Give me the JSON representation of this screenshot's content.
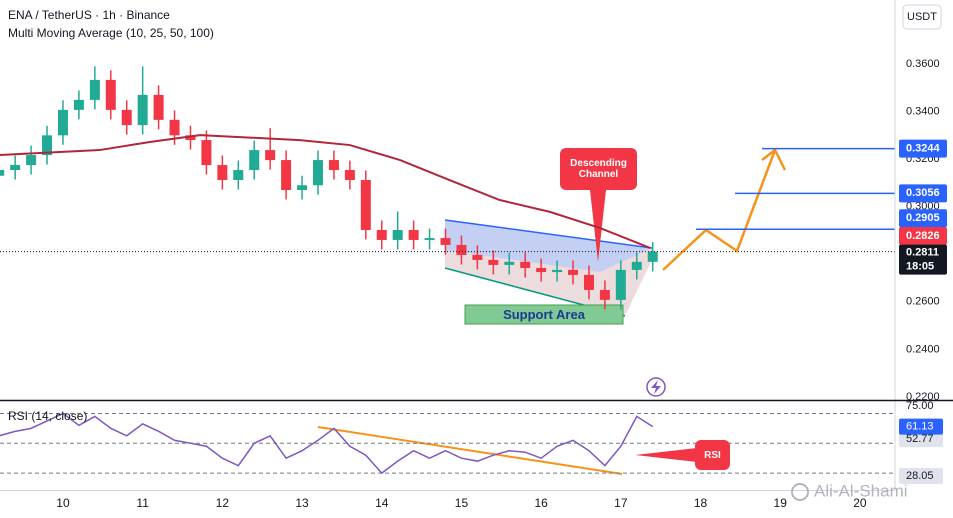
{
  "watermark": "Ali-Al-Shami",
  "chart_data": [
    {
      "type": "candlestick",
      "title": "ENA / TetherUS · 1h · Binance",
      "subtitle": "Multi Moving Average (10, 25, 50, 100)",
      "currency": "USDT",
      "x": [
        9.2,
        9.4,
        9.6,
        9.8,
        10.0,
        10.2,
        10.4,
        10.6,
        10.8,
        11.0,
        11.2,
        11.4,
        11.6,
        11.8,
        12.0,
        12.2,
        12.4,
        12.6,
        12.8,
        13.0,
        13.2,
        13.4,
        13.6,
        13.8,
        14.0,
        14.2,
        14.4,
        14.6,
        14.8,
        15.0,
        15.2,
        15.4,
        15.6,
        15.8,
        16.0,
        16.2,
        16.4,
        16.6,
        16.8,
        17.0,
        17.2,
        17.4
      ],
      "open": [
        0.313,
        0.3154,
        0.3175,
        0.3217,
        0.33,
        0.3407,
        0.3449,
        0.3533,
        0.3407,
        0.3343,
        0.347,
        0.3365,
        0.33,
        0.328,
        0.3175,
        0.3112,
        0.3154,
        0.3238,
        0.3196,
        0.307,
        0.309,
        0.3196,
        0.3154,
        0.3112,
        0.2902,
        0.286,
        0.2902,
        0.286,
        0.2868,
        0.2839,
        0.2797,
        0.2776,
        0.2755,
        0.2768,
        0.2742,
        0.2725,
        0.2734,
        0.2713,
        0.265,
        0.2608,
        0.2734,
        0.2768
      ],
      "high": [
        0.3194,
        0.3215,
        0.3257,
        0.334,
        0.3447,
        0.3489,
        0.359,
        0.3573,
        0.3447,
        0.359,
        0.351,
        0.3405,
        0.334,
        0.332,
        0.3215,
        0.3194,
        0.3278,
        0.333,
        0.3236,
        0.313,
        0.3236,
        0.3236,
        0.3194,
        0.3152,
        0.2942,
        0.298,
        0.2942,
        0.2908,
        0.2908,
        0.2879,
        0.2837,
        0.2816,
        0.2808,
        0.2808,
        0.2782,
        0.2774,
        0.2774,
        0.2753,
        0.269,
        0.2774,
        0.2808,
        0.2851
      ],
      "low": [
        0.309,
        0.3114,
        0.3135,
        0.3177,
        0.326,
        0.3367,
        0.3409,
        0.3367,
        0.3303,
        0.3303,
        0.3325,
        0.326,
        0.324,
        0.3135,
        0.3072,
        0.3072,
        0.3114,
        0.3156,
        0.303,
        0.303,
        0.305,
        0.3114,
        0.3072,
        0.2862,
        0.282,
        0.282,
        0.282,
        0.282,
        0.2799,
        0.2757,
        0.2736,
        0.2715,
        0.2715,
        0.2702,
        0.2685,
        0.2685,
        0.2673,
        0.261,
        0.2568,
        0.2568,
        0.2694,
        0.2728
      ],
      "close": [
        0.3154,
        0.3175,
        0.3217,
        0.33,
        0.3407,
        0.3449,
        0.3533,
        0.3407,
        0.3343,
        0.347,
        0.3365,
        0.33,
        0.328,
        0.3175,
        0.3112,
        0.3154,
        0.3238,
        0.3196,
        0.307,
        0.309,
        0.3196,
        0.3154,
        0.3112,
        0.2902,
        0.286,
        0.2902,
        0.286,
        0.2868,
        0.2839,
        0.2797,
        0.2776,
        0.2755,
        0.2768,
        0.2742,
        0.2725,
        0.2734,
        0.2713,
        0.265,
        0.2608,
        0.2734,
        0.2768,
        0.2811
      ],
      "up_color": "#22ab94",
      "down_color": "#f23645",
      "ma": {
        "color": "#b2263a",
        "x": [
          9.21,
          10.46,
          11.09,
          11.72,
          12.97,
          13.6,
          14.23,
          14.85,
          15.48,
          16.11,
          16.74,
          17.37
        ],
        "values": [
          0.3217,
          0.3238,
          0.3272,
          0.3301,
          0.328,
          0.3259,
          0.3196,
          0.3112,
          0.3028,
          0.2978,
          0.291,
          0.2826
        ]
      },
      "xlim": [
        9.21,
        20.44
      ],
      "xticks": [
        10,
        11,
        12,
        13,
        14,
        15,
        16,
        17,
        18,
        19,
        20
      ],
      "ylim": [
        0.2187,
        0.3869
      ],
      "yticks": [
        {
          "value": 0.22,
          "label": "0.2200"
        },
        {
          "value": 0.24,
          "label": "0.2400"
        },
        {
          "value": 0.26,
          "label": "0.2600"
        },
        {
          "value": 0.3,
          "label": "0.3000"
        },
        {
          "value": 0.32,
          "label": "0.3200"
        },
        {
          "value": 0.34,
          "label": "0.3400"
        },
        {
          "value": 0.36,
          "label": "0.3600"
        }
      ],
      "levels": [
        {
          "value": 0.3244,
          "color": "#2962ff"
        },
        {
          "value": 0.3056,
          "color": "#2962ff"
        },
        {
          "value": 0.2905,
          "color": "#2962ff"
        }
      ],
      "last_time": "18:05",
      "annotations": [
        "Descending Channel",
        "Support Area"
      ],
      "grid": false
    },
    {
      "type": "line",
      "title": "RSI (14, close)",
      "x": [
        9.2,
        9.4,
        9.6,
        9.8,
        10.0,
        10.2,
        10.4,
        10.6,
        10.8,
        11.0,
        11.2,
        11.4,
        11.6,
        11.8,
        12.0,
        12.2,
        12.4,
        12.6,
        12.8,
        13.0,
        13.2,
        13.4,
        13.6,
        13.8,
        14.0,
        14.2,
        14.4,
        14.6,
        14.8,
        15.0,
        15.2,
        15.4,
        15.6,
        15.8,
        16.0,
        16.2,
        16.4,
        16.6,
        16.8,
        17.0,
        17.2,
        17.4
      ],
      "values": [
        55,
        58,
        60,
        65,
        70,
        62,
        68,
        60,
        55,
        63,
        58,
        52,
        50,
        48,
        40,
        35,
        50,
        55,
        40,
        45,
        52,
        60,
        48,
        42,
        30,
        38,
        45,
        40,
        45,
        40,
        38,
        42,
        45,
        44,
        40,
        48,
        52,
        45,
        35,
        48,
        68,
        61.13
      ],
      "color": "#7e57c2",
      "ylim": [
        18.66,
        79.02
      ],
      "yticks": [
        {
          "value": 75,
          "label": "75.00"
        },
        52.77,
        28.05
      ],
      "bands": [
        70,
        50,
        30
      ],
      "annotation": "RSI"
    }
  ]
}
